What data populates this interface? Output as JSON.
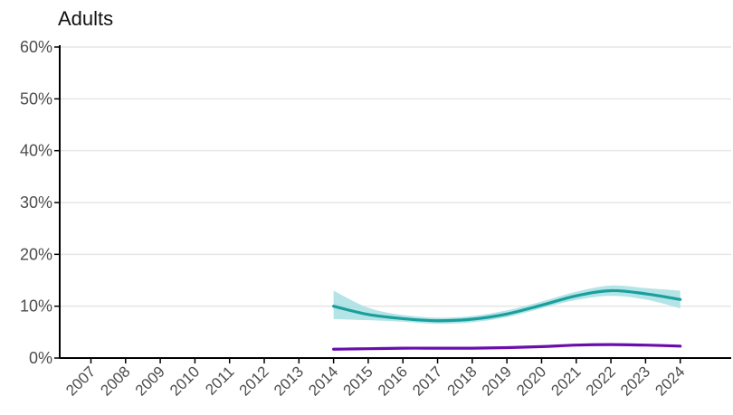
{
  "chart_data": {
    "type": "line",
    "title": "Adults",
    "xlabel": "",
    "ylabel": "",
    "x": [
      2007,
      2008,
      2009,
      2010,
      2011,
      2012,
      2013,
      2014,
      2015,
      2016,
      2017,
      2018,
      2019,
      2020,
      2021,
      2022,
      2023,
      2024
    ],
    "xlim": [
      2006.1,
      2025
    ],
    "ylim": [
      0,
      60
    ],
    "y_tick_values": [
      0,
      10,
      20,
      30,
      40,
      50,
      60
    ],
    "y_tick_labels": [
      "0%",
      "10%",
      "20%",
      "30%",
      "40%",
      "50%",
      "60%"
    ],
    "grid": "horizontal",
    "legend": "none",
    "series": [
      {
        "color": "#1a9e9e",
        "band_color": "#a8dfe2",
        "x": [
          2014,
          2015,
          2016,
          2017,
          2018,
          2019,
          2020,
          2021,
          2022,
          2023,
          2024
        ],
        "values": [
          10.0,
          8.4,
          7.6,
          7.2,
          7.5,
          8.5,
          10.2,
          12.0,
          13.0,
          12.4,
          11.3
        ],
        "lower": [
          7.5,
          7.3,
          7.0,
          6.6,
          6.9,
          7.9,
          9.6,
          11.2,
          12.0,
          11.3,
          9.6
        ],
        "upper": [
          13.0,
          9.7,
          8.3,
          7.8,
          8.1,
          9.2,
          10.9,
          12.8,
          14.0,
          13.5,
          13.0
        ]
      },
      {
        "color": "#6a0dad",
        "x": [
          2014,
          2015,
          2016,
          2017,
          2018,
          2019,
          2020,
          2021,
          2022,
          2023,
          2024
        ],
        "values": [
          1.7,
          1.8,
          1.9,
          1.9,
          1.9,
          2.0,
          2.2,
          2.5,
          2.6,
          2.5,
          2.3
        ]
      }
    ]
  }
}
